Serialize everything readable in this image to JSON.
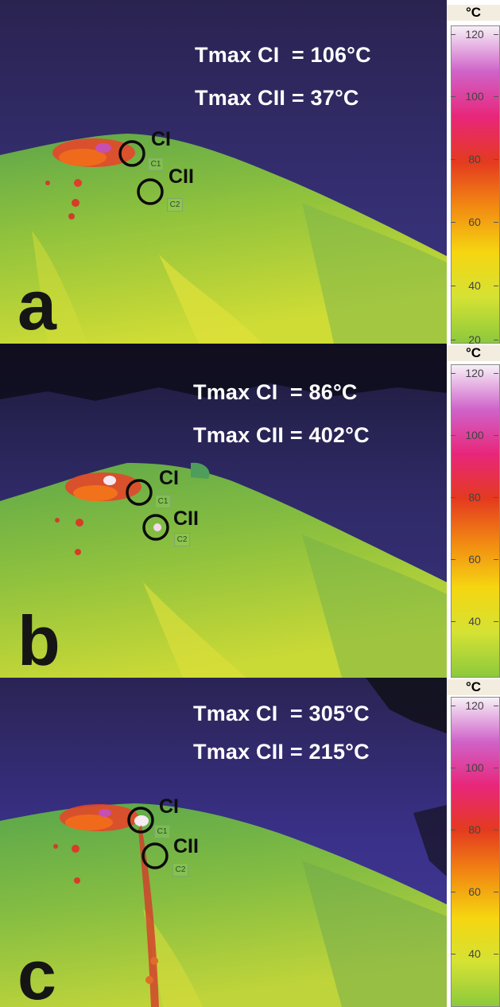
{
  "scale": {
    "unit": "°C",
    "ticks": [
      "120",
      "100",
      "80",
      "60",
      "40",
      "20"
    ],
    "colors": [
      "#f7f0f7",
      "#cf63c9",
      "#e8267a",
      "#e43a1f",
      "#f28a12",
      "#f5d611",
      "#d5e234",
      "#8cc93c"
    ]
  },
  "panels": [
    {
      "letter": "a",
      "ci_readout": "Tmax CI  = 106°C",
      "cii_readout": "Tmax CII = 37°C",
      "ci_label": "CI",
      "cii_label": "CII",
      "c1_box": "C1",
      "c2_box": "C2"
    },
    {
      "letter": "b",
      "ci_readout": "Tmax CI  = 86°C",
      "cii_readout": "Tmax CII = 402°C",
      "ci_label": "CI",
      "cii_label": "CII",
      "c1_box": "C1",
      "c2_box": "C2"
    },
    {
      "letter": "c",
      "ci_readout": "Tmax CI  = 305°C",
      "cii_readout": "Tmax CII = 215°C",
      "ci_label": "CI",
      "cii_label": "CII",
      "c1_box": "C1",
      "c2_box": "C2"
    }
  ]
}
